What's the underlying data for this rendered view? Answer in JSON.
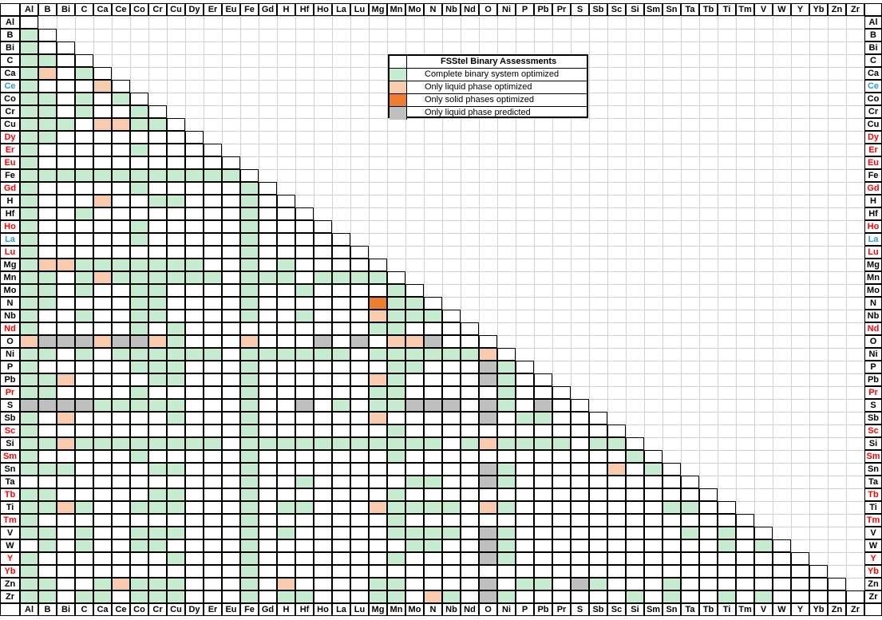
{
  "legend": {
    "title": "FSStel Binary Assessments",
    "items": [
      {
        "label": "Complete binary system optimized",
        "status": "1"
      },
      {
        "label": "Only liquid phase optimized",
        "status": "2"
      },
      {
        "label": "Only solid phases optimized",
        "status": "3"
      },
      {
        "label": "Only liquid phase predicted",
        "status": "4"
      }
    ]
  },
  "chart_data": {
    "type": "heatmap",
    "title": "FSStel Binary Assessments",
    "layout": "lower-triangular element-pair matrix; headers on top and bottom, element labels on left and right; diagonal and unassessed cells white",
    "elements": [
      "Al",
      "B",
      "Bi",
      "C",
      "Ca",
      "Ce",
      "Co",
      "Cr",
      "Cu",
      "Dy",
      "Er",
      "Eu",
      "Fe",
      "Gd",
      "H",
      "Hf",
      "Ho",
      "La",
      "Lu",
      "Mg",
      "Mn",
      "Mo",
      "N",
      "Nb",
      "Nd",
      "O",
      "Ni",
      "P",
      "Pb",
      "Pr",
      "S",
      "Sb",
      "Sc",
      "Si",
      "Sm",
      "Sn",
      "Ta",
      "Tb",
      "Ti",
      "Tm",
      "V",
      "W",
      "Y",
      "Yb",
      "Zn",
      "Zr"
    ],
    "row_label_colors": {
      "red": [
        "Dy",
        "Er",
        "Eu",
        "Gd",
        "Ho",
        "Lu",
        "Nd",
        "Pr",
        "Sc",
        "Sm",
        "Tb",
        "Tm",
        "Y",
        "Yb"
      ],
      "blue": [
        "Ce",
        "La"
      ]
    },
    "status_codes": {
      "0": "not assessed / empty",
      "1": "Complete binary system optimized",
      "2": "Only liquid phase optimized",
      "3": "Only solid phases optimized",
      "4": "Only liquid phase predicted"
    },
    "colors": {
      "0": "#ffffff",
      "1": "#c6ecd0",
      "2": "#f8cbad",
      "3": "#ed7d31",
      "4": "#bfbfbf",
      "label_red": "#ff0000",
      "label_blue": "#2e9bd2"
    },
    "rows": [
      "0",
      "10",
      "100",
      "1100",
      "12010",
      "100020",
      "1101010",
      "11010010",
      "111022110",
      "1100000000",
      "10000010000",
      "100000000000",
      "1111111111110",
      "10000010000010",
      "100020011000100",
      "1001000000001000",
      "10000010000010000",
      "100000100000100000",
      "1000000000001000000",
      "12211111110010100000",
      "110121111110111011110",
      "1101001100001001000010",
      "11000011000010000003110",
      "100100110000100100021110",
      "1000001010000000000110000",
      "24442442100020004040224000",
      "110101111110111111011111120",
      "1000001110001000000011000410",
      "11200001100010000002100004100",
      "110000100000100000011000001000",
      "4444111110001004010114440410400",
      "10200000100010000002000004011000",
      "100000000000100000001000000000000",
      "1121111111101111111111101211110110",
      "10000010000010000000100000000000010",
      "111000011000100000000000041000002010",
      "0000000000001001000001100410000000000",
      "11000001100010000000100000000000000000",
      "112100111000101100021111021000000001100",
      "1000000000001000000010000000000000000000",
      "11010011100010100000111104100000000010100",
      "010100110000100000000110041000000000001010",
      "1000000010001000000010000410000000000000000",
      "10000000000010000000000000000000000000000000",
      "110012111000102000011000040110410001000000000",
      "1101101110001011000110210410000001010010100000"
    ]
  }
}
